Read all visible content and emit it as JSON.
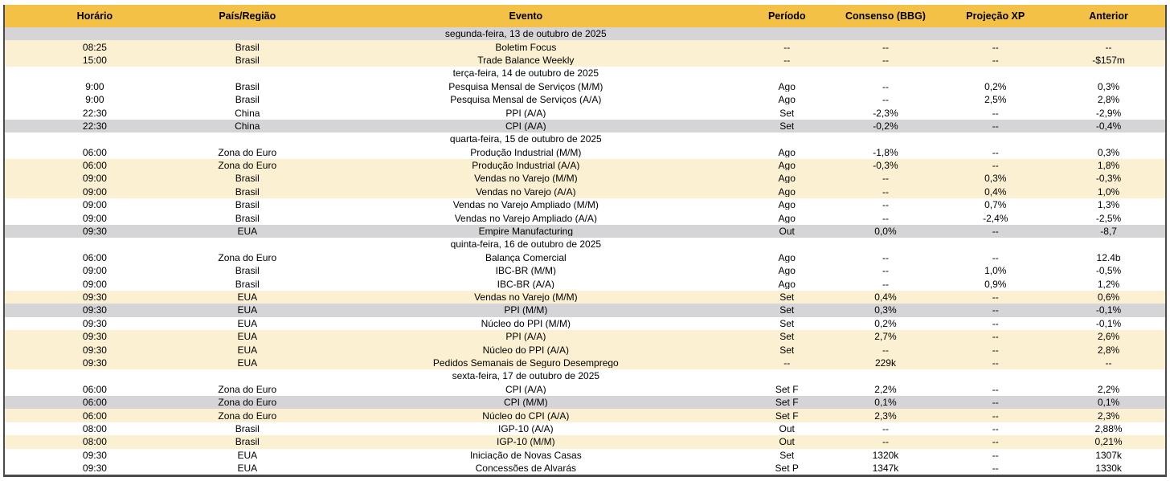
{
  "table_title": "economic-calendar",
  "colors": {
    "header_gold": "#f4c147",
    "row_cream": "#fcf0d2",
    "row_gray": "#d5d5d7",
    "row_white": "#ffffff",
    "border_dark": "#4a4a4a",
    "text": "#000000"
  },
  "header": {
    "columns": [
      "Horário",
      "País/Região",
      "Evento",
      "Período",
      "Consenso (BBG)",
      "Projeção XP",
      "Anterior"
    ]
  },
  "sections": [
    {
      "date_label": "segunda-feira, 13 de outubro de 2025",
      "date_bg": "gray",
      "rows": [
        {
          "bg": "cream",
          "horario": "08:25",
          "pais": "Brasil",
          "evento": "Boletim Focus",
          "periodo": "--",
          "consenso": "--",
          "projecao": "--",
          "anterior": "--"
        },
        {
          "bg": "cream",
          "horario": "15:00",
          "pais": "Brasil",
          "evento": "Trade Balance Weekly",
          "periodo": "--",
          "consenso": "--",
          "projecao": "--",
          "anterior": "-$157m"
        }
      ]
    },
    {
      "date_label": "terça-feira, 14 de outubro de 2025",
      "date_bg": "white",
      "rows": [
        {
          "bg": "white",
          "horario": "9:00",
          "pais": "Brasil",
          "evento": "Pesquisa Mensal de Serviços (M/M)",
          "periodo": "Ago",
          "consenso": "--",
          "projecao": "0,2%",
          "anterior": "0,3%"
        },
        {
          "bg": "white",
          "horario": "9:00",
          "pais": "Brasil",
          "evento": "Pesquisa Mensal de Serviços (A/A)",
          "periodo": "Ago",
          "consenso": "--",
          "projecao": "2,5%",
          "anterior": "2,8%"
        },
        {
          "bg": "white",
          "horario": "22:30",
          "pais": "China",
          "evento": "PPI (A/A)",
          "periodo": "Set",
          "consenso": "-2,3%",
          "projecao": "--",
          "anterior": "-2,9%"
        },
        {
          "bg": "gray",
          "horario": "22:30",
          "pais": "China",
          "evento": "CPI (A/A)",
          "periodo": "Set",
          "consenso": "-0,2%",
          "projecao": "--",
          "anterior": "-0,4%"
        }
      ]
    },
    {
      "date_label": "quarta-feira, 15 de outubro de 2025",
      "date_bg": "white",
      "rows": [
        {
          "bg": "white",
          "horario": "06:00",
          "pais": "Zona do Euro",
          "evento": "Produção Industrial (M/M)",
          "periodo": "Ago",
          "consenso": "-1,8%",
          "projecao": "--",
          "anterior": "0,3%"
        },
        {
          "bg": "cream",
          "horario": "06:00",
          "pais": "Zona do Euro",
          "evento": "Produção Industrial (A/A)",
          "periodo": "Ago",
          "consenso": "-0,3%",
          "projecao": "--",
          "anterior": "1,8%"
        },
        {
          "bg": "cream",
          "horario": "09:00",
          "pais": "Brasil",
          "evento": "Vendas no Varejo (M/M)",
          "periodo": "Ago",
          "consenso": "--",
          "projecao": "0,3%",
          "anterior": "-0,3%"
        },
        {
          "bg": "cream",
          "horario": "09:00",
          "pais": "Brasil",
          "evento": "Vendas no Varejo (A/A)",
          "periodo": "Ago",
          "consenso": "--",
          "projecao": "0,4%",
          "anterior": "1,0%"
        },
        {
          "bg": "white",
          "horario": "09:00",
          "pais": "Brasil",
          "evento": "Vendas no Varejo Ampliado (M/M)",
          "periodo": "Ago",
          "consenso": "--",
          "projecao": "0,7%",
          "anterior": "1,3%"
        },
        {
          "bg": "white",
          "horario": "09:00",
          "pais": "Brasil",
          "evento": "Vendas no Varejo Ampliado (A/A)",
          "periodo": "Ago",
          "consenso": "--",
          "projecao": "-2,4%",
          "anterior": "-2,5%"
        },
        {
          "bg": "gray",
          "horario": "09:30",
          "pais": "EUA",
          "evento": "Empire Manufacturing",
          "periodo": "Out",
          "consenso": "0,0%",
          "projecao": "--",
          "anterior": "-8,7"
        }
      ]
    },
    {
      "date_label": "quinta-feira, 16 de outubro de 2025",
      "date_bg": "white",
      "rows": [
        {
          "bg": "white",
          "horario": "06:00",
          "pais": "Zona do Euro",
          "evento": "Balança Comercial",
          "periodo": "Ago",
          "consenso": "--",
          "projecao": "--",
          "anterior": "12.4b"
        },
        {
          "bg": "white",
          "horario": "09:00",
          "pais": "Brasil",
          "evento": "IBC-BR (M/M)",
          "periodo": "Ago",
          "consenso": "--",
          "projecao": "1,0%",
          "anterior": "-0,5%"
        },
        {
          "bg": "white",
          "horario": "09:00",
          "pais": "Brasil",
          "evento": "IBC-BR (A/A)",
          "periodo": "Ago",
          "consenso": "--",
          "projecao": "0,9%",
          "anterior": "1,2%"
        },
        {
          "bg": "cream",
          "horario": "09:30",
          "pais": "EUA",
          "evento": "Vendas no Varejo (M/M)",
          "periodo": "Set",
          "consenso": "0,4%",
          "projecao": "--",
          "anterior": "0,6%"
        },
        {
          "bg": "gray",
          "horario": "09:30",
          "pais": "EUA",
          "evento": "PPI (M/M)",
          "periodo": "Set",
          "consenso": "0,3%",
          "projecao": "--",
          "anterior": "-0,1%"
        },
        {
          "bg": "white",
          "horario": "09:30",
          "pais": "EUA",
          "evento": "Núcleo do PPI (M/M)",
          "periodo": "Set",
          "consenso": "0,2%",
          "projecao": "--",
          "anterior": "-0,1%"
        },
        {
          "bg": "cream",
          "horario": "09:30",
          "pais": "EUA",
          "evento": "PPI (A/A)",
          "periodo": "Set",
          "consenso": "2,7%",
          "projecao": "--",
          "anterior": "2,6%"
        },
        {
          "bg": "cream",
          "horario": "09:30",
          "pais": "EUA",
          "evento": "Núcleo do PPI (A/A)",
          "periodo": "Set",
          "consenso": "--",
          "projecao": "--",
          "anterior": "2,8%"
        },
        {
          "bg": "cream",
          "horario": "09:30",
          "pais": "EUA",
          "evento": "Pedidos Semanais de Seguro Desemprego",
          "periodo": "--",
          "consenso": "229k",
          "projecao": "--",
          "anterior": "--"
        }
      ]
    },
    {
      "date_label": "sexta-feira, 17 de outubro de 2025",
      "date_bg": "white",
      "rows": [
        {
          "bg": "white",
          "horario": "06:00",
          "pais": "Zona do Euro",
          "evento": "CPI (A/A)",
          "periodo": "Set F",
          "consenso": "2,2%",
          "projecao": "--",
          "anterior": "2,2%"
        },
        {
          "bg": "gray",
          "horario": "06:00",
          "pais": "Zona do Euro",
          "evento": "CPI (M/M)",
          "periodo": "Set F",
          "consenso": "0,1%",
          "projecao": "--",
          "anterior": "0,1%"
        },
        {
          "bg": "cream",
          "horario": "06:00",
          "pais": "Zona do Euro",
          "evento": "Núcleo do CPI (A/A)",
          "periodo": "Set F",
          "consenso": "2,3%",
          "projecao": "--",
          "anterior": "2,3%"
        },
        {
          "bg": "white",
          "horario": "08:00",
          "pais": "Brasil",
          "evento": "IGP-10 (A/A)",
          "periodo": "Out",
          "consenso": "--",
          "projecao": "--",
          "anterior": "2,88%"
        },
        {
          "bg": "cream",
          "horario": "08:00",
          "pais": "Brasil",
          "evento": "IGP-10 (M/M)",
          "periodo": "Out",
          "consenso": "--",
          "projecao": "--",
          "anterior": "0,21%"
        },
        {
          "bg": "white",
          "horario": "09:30",
          "pais": "EUA",
          "evento": "Iniciação de Novas Casas",
          "periodo": "Set",
          "consenso": "1320k",
          "projecao": "--",
          "anterior": "1307k"
        },
        {
          "bg": "white",
          "horario": "09:30",
          "pais": "EUA",
          "evento": "Concessões de Alvarás",
          "periodo": "Set P",
          "consenso": "1347k",
          "projecao": "--",
          "anterior": "1330k"
        }
      ]
    }
  ]
}
